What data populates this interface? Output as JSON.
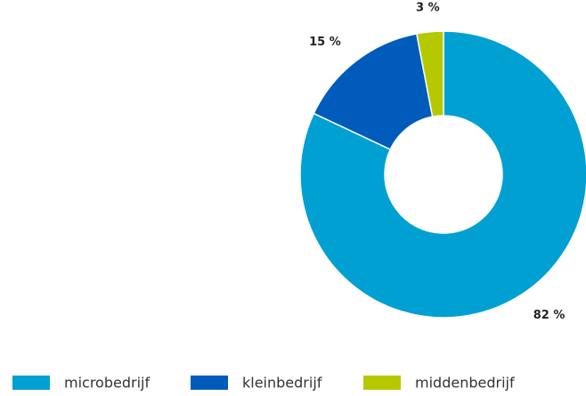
{
  "chart_data": {
    "type": "donut",
    "categories": [
      "microbedrijf",
      "kleinbedrijf",
      "middenbedrijf"
    ],
    "values": [
      82,
      15,
      3
    ],
    "value_labels": [
      "82 %",
      "15 %",
      "3 %"
    ],
    "colors": [
      "#00a0d2",
      "#005bbb",
      "#b5c900"
    ],
    "legend": "bottom"
  }
}
